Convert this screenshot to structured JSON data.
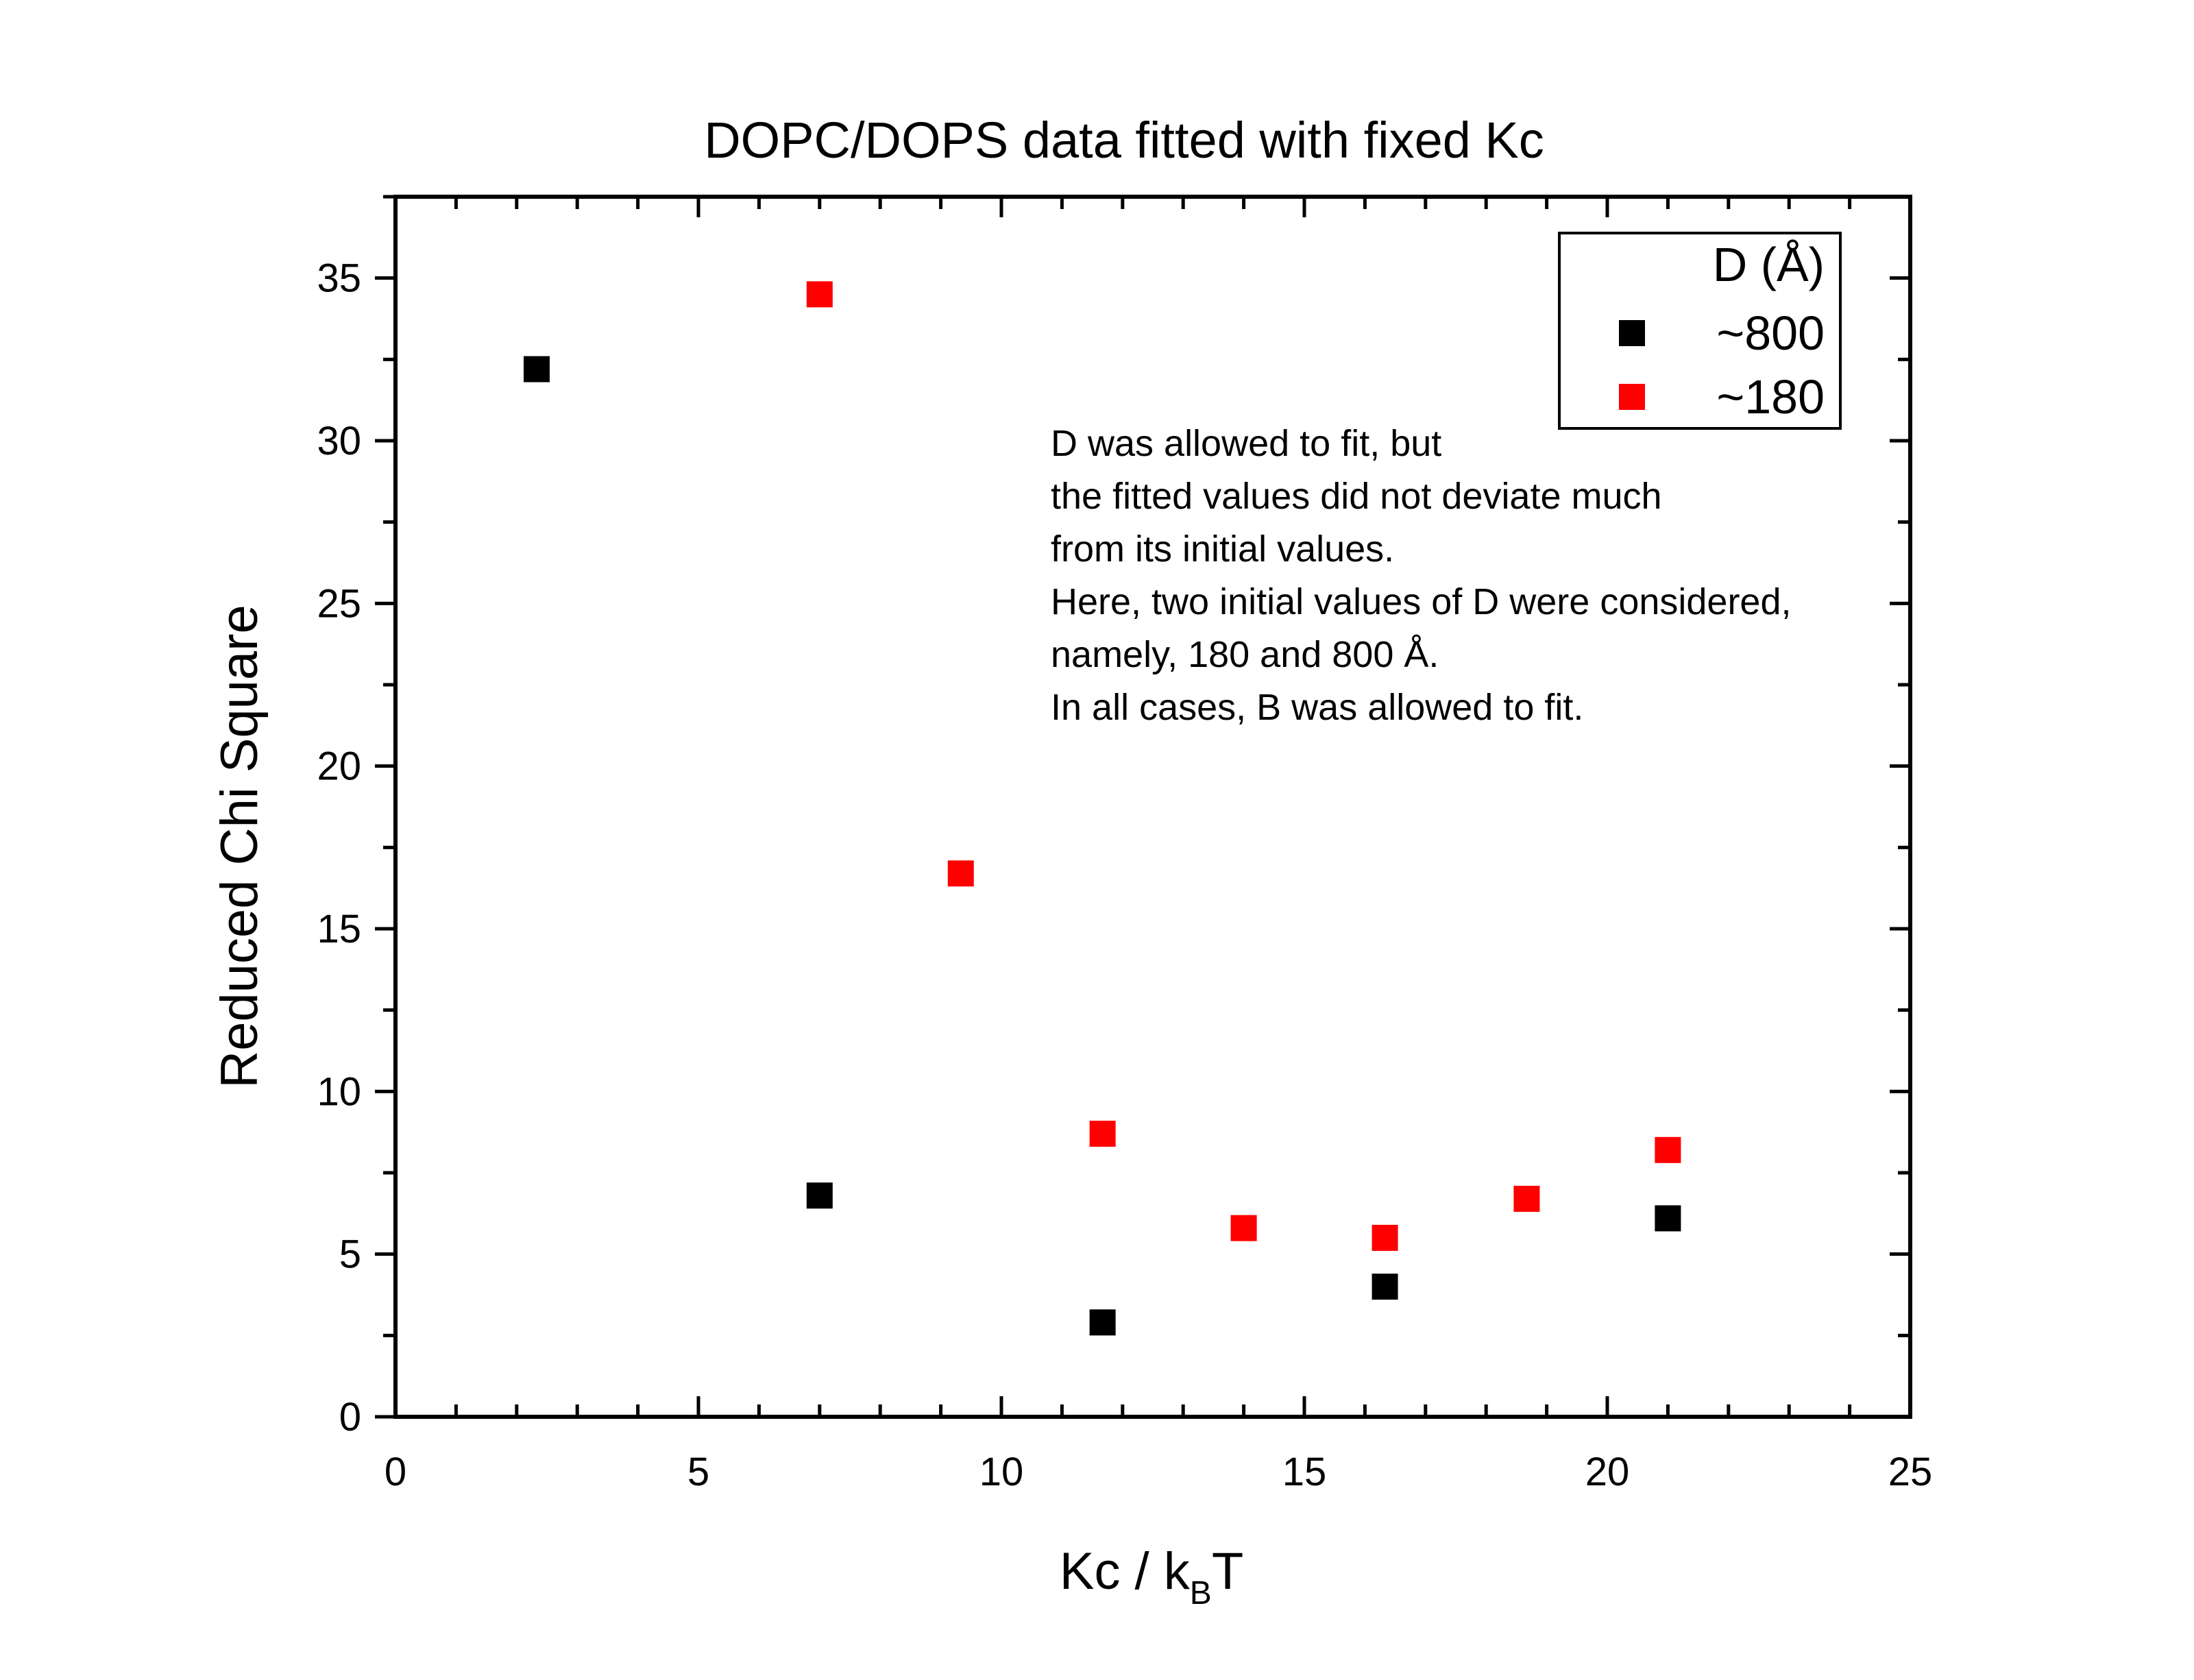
{
  "chart_data": {
    "type": "scatter",
    "title": "DOPC/DOPS data fitted with fixed Kc",
    "xlabel": {
      "main": "Kc / k",
      "sub": "B",
      "tail": "T"
    },
    "ylabel": "Reduced Chi Square",
    "xlim": [
      0,
      25
    ],
    "ylim": [
      0,
      37.5
    ],
    "xticks": [
      "0",
      "5",
      "10",
      "15",
      "20",
      "25"
    ],
    "yticks": [
      "0",
      "5",
      "10",
      "15",
      "20",
      "25",
      "30",
      "35"
    ],
    "grid": false,
    "legend": {
      "title": "D (Å)",
      "placement": "top-right"
    },
    "series": [
      {
        "name": "~800",
        "color": "#000000",
        "marker": "square",
        "x": [
          2.33,
          7.0,
          11.67,
          16.33,
          21.0
        ],
        "y": [
          32.2,
          6.8,
          2.9,
          4.0,
          6.1
        ]
      },
      {
        "name": "~180",
        "color": "#ff0000",
        "marker": "square",
        "x": [
          7.0,
          9.33,
          11.67,
          14.0,
          16.33,
          18.67,
          21.0
        ],
        "y": [
          34.5,
          16.7,
          8.7,
          5.8,
          5.5,
          6.7,
          8.2
        ]
      }
    ],
    "annotation": [
      "D was allowed to fit, but",
      "the fitted values did not deviate much",
      "from its initial values.",
      "Here, two initial values of D were considered,",
      "namely, 180 and 800 Å.",
      "In all cases, B was allowed to fit."
    ]
  }
}
